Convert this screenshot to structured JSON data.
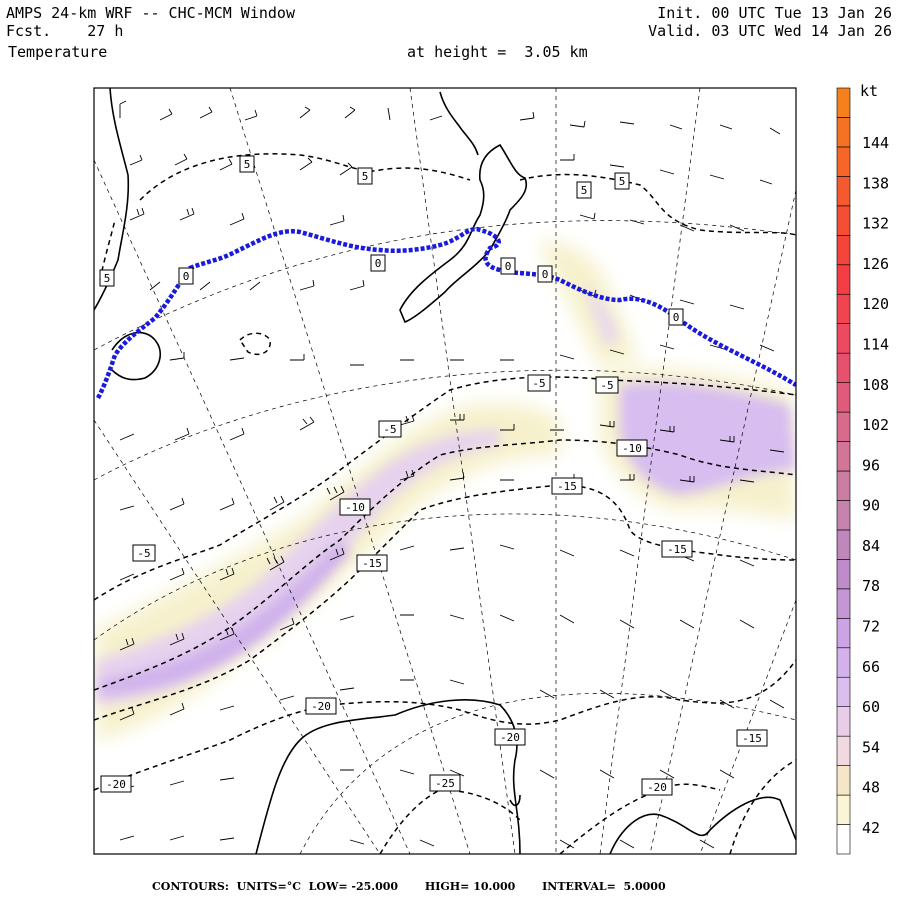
{
  "header": {
    "title": "AMPS 24-km WRF -- CHC-MCM Window",
    "forecast_label": "Fcst.",
    "forecast_value": "27 h",
    "init": "Init. 00 UTC Tue 13 Jan 26",
    "valid": "Valid. 03 UTC Wed 14 Jan 26",
    "field": "Temperature",
    "height": "at height =  3.05 km"
  },
  "colorbar": {
    "unit": "kt",
    "labels": [
      "144",
      "138",
      "132",
      "126",
      "120",
      "114",
      "108",
      "102",
      "96",
      "90",
      "84",
      "78",
      "72",
      "66",
      "60",
      "54",
      "48",
      "42"
    ],
    "colors": [
      "#ffffff",
      "#fbf5d6",
      "#f5e6c8",
      "#f2d9df",
      "#e8cce8",
      "#dcbdf0",
      "#d4b0ec",
      "#cca4e6",
      "#c596d6",
      "#c08bcb",
      "#c087bd",
      "#c683ad",
      "#cc7ea2",
      "#d27597",
      "#d86a8c",
      "#e05a7c",
      "#e6516e",
      "#ec4a5e",
      "#f04450",
      "#f23e44",
      "#f3453c",
      "#f44e34",
      "#f45a2e",
      "#f56628",
      "#f57222",
      "#f6801c"
    ]
  },
  "contour_labels": {
    "c5": "5",
    "c0": "0",
    "cm5": "-5",
    "cm10": "-10",
    "cm15": "-15",
    "cm20": "-20",
    "cm25": "-25"
  },
  "footer": {
    "contours_label": "CONTOURS:",
    "units": "UNITS=°C",
    "low": "LOW= -25.000",
    "high": "HIGH= 10.000",
    "interval": "INTERVAL=  5.0000"
  },
  "style": {
    "zero_contour_color": "#1a1adc",
    "frame_color": "#000000"
  }
}
